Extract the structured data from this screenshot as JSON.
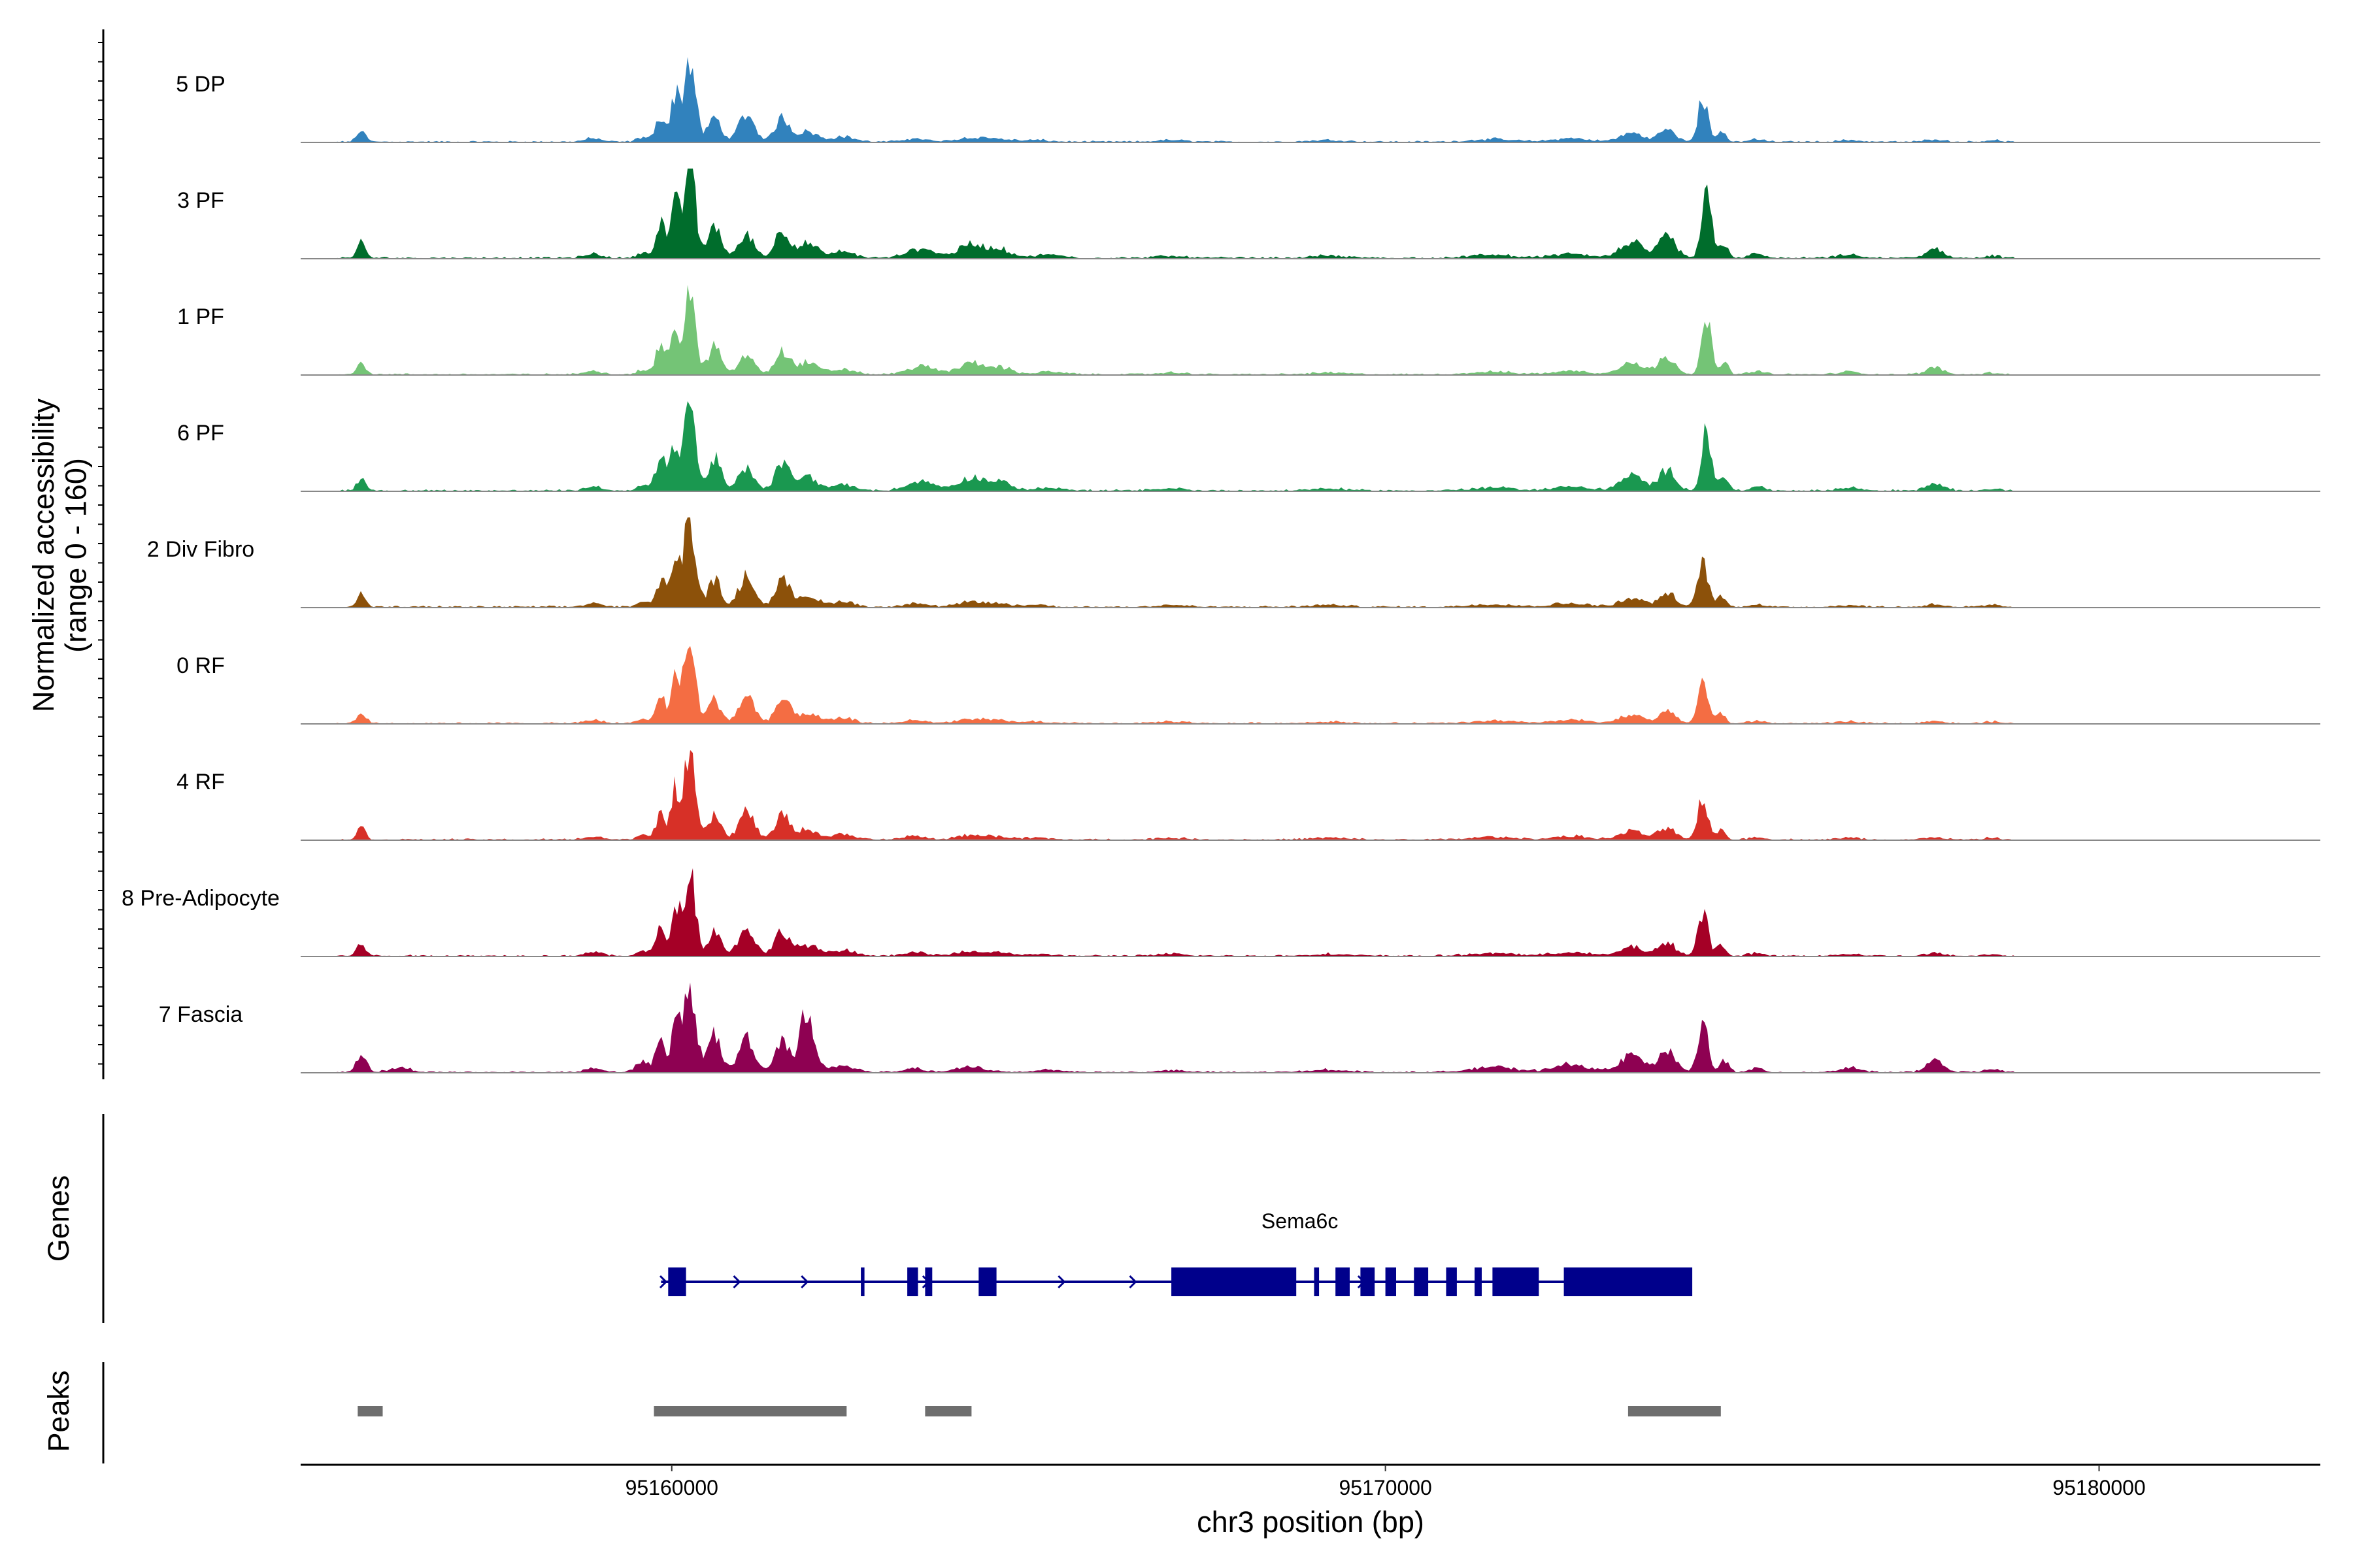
{
  "chart_data": {
    "type": "area",
    "title": "",
    "xlabel": "chr3 position (bp)",
    "ylabel": "Normalized accessibility\n(range 0 - 160)",
    "y_range": [
      0,
      160
    ],
    "xlim": [
      95154800,
      95183100
    ],
    "x_ticks": [
      95160000,
      95170000,
      95180000
    ],
    "x_tick_labels": [
      "95160000",
      "95170000",
      "95180000"
    ],
    "peak_templates": {
      "main": [
        [
          95155650,
          0.14,
          60
        ],
        [
          95158900,
          0.04,
          120
        ],
        [
          95159600,
          0.05,
          90
        ],
        [
          95159850,
          0.3,
          70
        ],
        [
          95160050,
          0.55,
          55
        ],
        [
          95160250,
          0.98,
          80
        ],
        [
          95160600,
          0.28,
          90
        ],
        [
          95161050,
          0.32,
          110
        ],
        [
          95161550,
          0.28,
          100
        ],
        [
          95161900,
          0.12,
          140
        ],
        [
          95162400,
          0.06,
          160
        ],
        [
          95163400,
          0.04,
          150
        ],
        [
          95164200,
          0.05,
          200
        ],
        [
          95164600,
          0.03,
          160
        ],
        [
          95165100,
          0.02,
          180
        ],
        [
          95167000,
          0.02,
          200
        ],
        [
          95169200,
          0.02,
          250
        ],
        [
          95171500,
          0.03,
          300
        ],
        [
          95172600,
          0.04,
          250
        ],
        [
          95173450,
          0.1,
          160
        ],
        [
          95173950,
          0.14,
          120
        ],
        [
          95174450,
          0.5,
          70
        ],
        [
          95174700,
          0.12,
          60
        ],
        [
          95175200,
          0.03,
          100
        ],
        [
          95176500,
          0.02,
          150
        ],
        [
          95177700,
          0.03,
          120
        ],
        [
          95178500,
          0.02,
          100
        ]
      ],
      "green": [
        [
          95155650,
          0.14,
          60
        ],
        [
          95158900,
          0.04,
          120
        ],
        [
          95159600,
          0.05,
          90
        ],
        [
          95159850,
          0.36,
          70
        ],
        [
          95160050,
          0.5,
          55
        ],
        [
          95160250,
          1.0,
          75
        ],
        [
          95160600,
          0.33,
          90
        ],
        [
          95161050,
          0.22,
          110
        ],
        [
          95161550,
          0.27,
          100
        ],
        [
          95161900,
          0.14,
          140
        ],
        [
          95162400,
          0.06,
          160
        ],
        [
          95163500,
          0.09,
          200
        ],
        [
          95164200,
          0.13,
          180
        ],
        [
          95164600,
          0.08,
          160
        ],
        [
          95165300,
          0.03,
          200
        ],
        [
          95167000,
          0.02,
          200
        ],
        [
          95169200,
          0.02,
          250
        ],
        [
          95171500,
          0.03,
          300
        ],
        [
          95172600,
          0.04,
          250
        ],
        [
          95173450,
          0.15,
          160
        ],
        [
          95173950,
          0.2,
          120
        ],
        [
          95174500,
          0.6,
          70
        ],
        [
          95174750,
          0.14,
          60
        ],
        [
          95175200,
          0.04,
          100
        ],
        [
          95176500,
          0.03,
          150
        ],
        [
          95177700,
          0.08,
          120
        ],
        [
          95178500,
          0.02,
          100
        ]
      ],
      "fascia": [
        [
          95155650,
          0.22,
          70
        ],
        [
          95156200,
          0.05,
          150
        ],
        [
          95158900,
          0.05,
          120
        ],
        [
          95159600,
          0.14,
          90
        ],
        [
          95159850,
          0.35,
          70
        ],
        [
          95160050,
          0.5,
          55
        ],
        [
          95160250,
          0.95,
          90
        ],
        [
          95160600,
          0.45,
          90
        ],
        [
          95161050,
          0.4,
          110
        ],
        [
          95161550,
          0.38,
          100
        ],
        [
          95161900,
          0.72,
          100
        ],
        [
          95162400,
          0.08,
          160
        ],
        [
          95163400,
          0.04,
          150
        ],
        [
          95164200,
          0.06,
          200
        ],
        [
          95165300,
          0.03,
          200
        ],
        [
          95167000,
          0.02,
          200
        ],
        [
          95169200,
          0.03,
          250
        ],
        [
          95171500,
          0.06,
          300
        ],
        [
          95172600,
          0.09,
          250
        ],
        [
          95173450,
          0.2,
          160
        ],
        [
          95173950,
          0.25,
          120
        ],
        [
          95174450,
          0.58,
          70
        ],
        [
          95174750,
          0.15,
          60
        ],
        [
          95175200,
          0.04,
          100
        ],
        [
          95176500,
          0.05,
          150
        ],
        [
          95177700,
          0.13,
          120
        ],
        [
          95178500,
          0.04,
          100
        ]
      ]
    },
    "tracks": [
      {
        "name": "5 DP",
        "color": "#3182bd",
        "scale": 1.0,
        "template": "main"
      },
      {
        "name": "3 PF",
        "color": "#006d2c",
        "scale": 1.2,
        "template": "green"
      },
      {
        "name": "1 PF",
        "color": "#74c476",
        "scale": 1.0,
        "template": "green"
      },
      {
        "name": "6 PF",
        "color": "#1a9850",
        "scale": 1.15,
        "template": "green"
      },
      {
        "name": "2 Div Fibro",
        "color": "#8c510a",
        "scale": 1.1,
        "template": "main"
      },
      {
        "name": "0 RF",
        "color": "#f46d43",
        "scale": 0.98,
        "template": "main"
      },
      {
        "name": "4 RF",
        "color": "#d73027",
        "scale": 1.0,
        "template": "main"
      },
      {
        "name": "8 Pre-Adipocyte",
        "color": "#a50026",
        "scale": 1.05,
        "template": "main"
      },
      {
        "name": "7 Fascia",
        "color": "#8e0152",
        "scale": 1.0,
        "template": "fascia"
      }
    ],
    "genes": {
      "title": "Genes",
      "name": "Sema6c",
      "color": "#00008b",
      "start": 95159850,
      "end": 95173950,
      "exons": [
        [
          95159950,
          95160200
        ],
        [
          95162650,
          95162700
        ],
        [
          95163300,
          95163450
        ],
        [
          95163550,
          95163650
        ],
        [
          95164300,
          95164550
        ],
        [
          95167000,
          95168750
        ],
        [
          95169000,
          95169070
        ],
        [
          95169300,
          95169500
        ],
        [
          95169650,
          95169850
        ],
        [
          95170000,
          95170150
        ],
        [
          95170400,
          95170600
        ],
        [
          95170850,
          95171000
        ],
        [
          95171250,
          95171350
        ],
        [
          95171500,
          95172150
        ],
        [
          95172500,
          95174300
        ]
      ],
      "arrows": [
        95159920,
        95160950,
        95161900,
        95163600,
        95165500,
        95166500,
        95169700
      ]
    },
    "peaks": {
      "title": "Peaks",
      "color": "#6e6e6e",
      "ranges": [
        [
          95155600,
          95155950
        ],
        [
          95159750,
          95162450
        ],
        [
          95163550,
          95164200
        ],
        [
          95173400,
          95174700
        ]
      ]
    }
  }
}
